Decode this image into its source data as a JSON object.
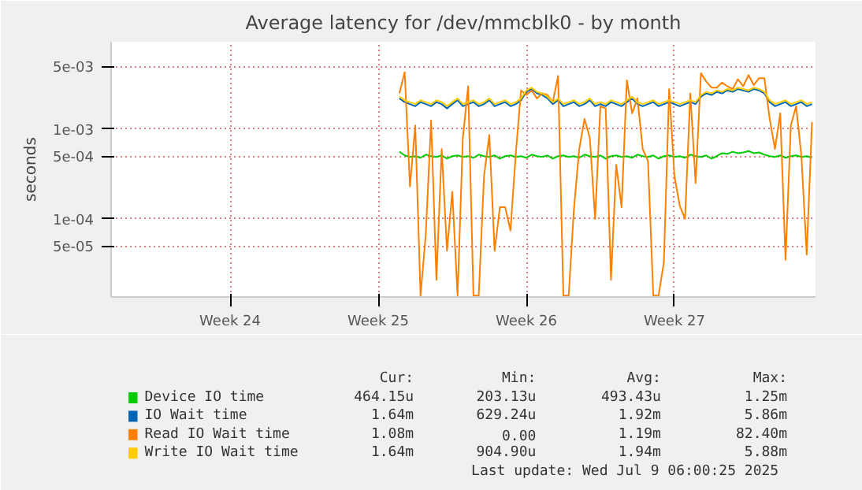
{
  "chart_data": {
    "type": "line",
    "title": "Average latency for /dev/mmcblk0 - by month",
    "ylabel": "seconds",
    "x": [
      "2025-06-19T12:00",
      "2025-06-19T18:00",
      "2025-06-20T00:00",
      "2025-06-20T06:00",
      "2025-06-20T12:00",
      "2025-06-20T18:00",
      "2025-06-21T00:00",
      "2025-06-21T06:00",
      "2025-06-21T12:00",
      "2025-06-21T18:00",
      "2025-06-22T00:00",
      "2025-06-22T06:00",
      "2025-06-22T12:00",
      "2025-06-22T18:00",
      "2025-06-23T00:00",
      "2025-06-23T06:00",
      "2025-06-23T12:00",
      "2025-06-23T18:00",
      "2025-06-24T00:00",
      "2025-06-24T06:00",
      "2025-06-24T12:00",
      "2025-06-24T18:00",
      "2025-06-25T00:00",
      "2025-06-25T06:00",
      "2025-06-25T12:00",
      "2025-06-25T18:00",
      "2025-06-26T00:00",
      "2025-06-26T06:00",
      "2025-06-26T12:00",
      "2025-06-26T18:00",
      "2025-06-27T00:00",
      "2025-06-27T06:00",
      "2025-06-27T12:00",
      "2025-06-27T18:00",
      "2025-06-28T00:00",
      "2025-06-28T06:00",
      "2025-06-28T12:00",
      "2025-06-28T18:00",
      "2025-06-29T00:00",
      "2025-06-29T06:00",
      "2025-06-29T12:00",
      "2025-06-29T18:00",
      "2025-06-30T00:00",
      "2025-06-30T06:00",
      "2025-06-30T12:00",
      "2025-06-30T18:00",
      "2025-07-01T00:00",
      "2025-07-01T06:00",
      "2025-07-01T12:00",
      "2025-07-01T18:00",
      "2025-07-02T00:00",
      "2025-07-02T06:00",
      "2025-07-02T12:00",
      "2025-07-02T18:00",
      "2025-07-03T00:00",
      "2025-07-03T06:00",
      "2025-07-03T12:00",
      "2025-07-03T18:00",
      "2025-07-04T00:00",
      "2025-07-04T06:00",
      "2025-07-04T12:00",
      "2025-07-04T18:00",
      "2025-07-05T00:00",
      "2025-07-05T06:00",
      "2025-07-05T12:00",
      "2025-07-05T18:00",
      "2025-07-06T00:00",
      "2025-07-06T06:00",
      "2025-07-06T12:00",
      "2025-07-06T18:00",
      "2025-07-07T00:00",
      "2025-07-07T06:00",
      "2025-07-07T12:00",
      "2025-07-07T18:00",
      "2025-07-08T00:00",
      "2025-07-08T06:00",
      "2025-07-08T12:00",
      "2025-07-08T18:00",
      "2025-07-09T00:00"
    ],
    "series": [
      {
        "name": "Device IO time",
        "color": "#00cc00",
        "values": [
          0.00056,
          0.00051,
          0.00049,
          0.0005,
          0.00048,
          0.00052,
          0.0005,
          0.00049,
          0.00051,
          0.00047,
          0.0005,
          0.00051,
          0.00049,
          0.0005,
          0.00048,
          0.00052,
          0.0005,
          0.00049,
          0.00051,
          0.00047,
          0.0005,
          0.00051,
          0.00049,
          0.0005,
          0.00048,
          0.00052,
          0.0005,
          0.00049,
          0.00051,
          0.00047,
          0.0005,
          0.00051,
          0.00049,
          0.0005,
          0.00048,
          0.00052,
          0.0005,
          0.00049,
          0.00051,
          0.00047,
          0.0005,
          0.00051,
          0.00049,
          0.0005,
          0.00048,
          0.00052,
          0.0005,
          0.00049,
          0.00051,
          0.00047,
          0.0005,
          0.00051,
          0.00049,
          0.0005,
          0.00048,
          0.00052,
          0.0005,
          0.00049,
          0.00051,
          0.00047,
          0.0005,
          0.00054,
          0.00053,
          0.00056,
          0.00054,
          0.00055,
          0.00057,
          0.00054,
          0.00055,
          0.00052,
          0.0005,
          0.00049,
          0.00051,
          0.00048,
          0.0005,
          0.00051,
          0.00049,
          0.0005,
          0.00048
        ]
      },
      {
        "name": "IO Wait time",
        "color": "#0066b3",
        "values": [
          0.0022,
          0.002,
          0.0019,
          0.0018,
          0.002,
          0.0019,
          0.0018,
          0.002,
          0.0019,
          0.0017,
          0.0019,
          0.0021,
          0.0018,
          0.0019,
          0.002,
          0.0018,
          0.0019,
          0.0021,
          0.0018,
          0.0019,
          0.002,
          0.0018,
          0.0019,
          0.0021,
          0.0026,
          0.0028,
          0.0025,
          0.0024,
          0.0022,
          0.0019,
          0.0021,
          0.0018,
          0.0019,
          0.002,
          0.0018,
          0.0019,
          0.0021,
          0.0018,
          0.0019,
          0.0018,
          0.002,
          0.0019,
          0.0018,
          0.002,
          0.0022,
          0.0019,
          0.0018,
          0.0019,
          0.002,
          0.0018,
          0.0019,
          0.002,
          0.0019,
          0.0018,
          0.0019,
          0.002,
          0.0019,
          0.0023,
          0.0025,
          0.0024,
          0.0026,
          0.0025,
          0.0027,
          0.0026,
          0.0028,
          0.0027,
          0.0026,
          0.0028,
          0.0027,
          0.0025,
          0.002,
          0.0018,
          0.0019,
          0.002,
          0.0018,
          0.0019,
          0.002,
          0.0018,
          0.0019
        ]
      },
      {
        "name": "Read IO Wait time",
        "color": "#ff8000",
        "values": [
          0.0025,
          0.0043,
          0.00023,
          0.0011,
          1.4e-05,
          6.9e-05,
          0.00125,
          2.1e-05,
          0.0006,
          4.4e-05,
          0.0002,
          1.4e-05,
          0.0008,
          0.003,
          1.4e-05,
          1.4e-05,
          0.0003,
          0.00086,
          4.4e-05,
          0.000135,
          0.000135,
          7.4e-05,
          0.00053,
          0.0027,
          0.0024,
          0.0027,
          0.0022,
          0.0025,
          0.0024,
          0.002,
          0.0039,
          1.4e-05,
          1.4e-05,
          0.00013,
          0.0006,
          0.0013,
          0.0008,
          0.0001,
          0.0018,
          0.0017,
          2.1e-05,
          0.0004,
          0.000135,
          0.0035,
          0.0015,
          0.0022,
          0.0006,
          0.00044,
          1.4e-05,
          1.4e-05,
          3.3e-05,
          0.0028,
          0.0003,
          0.00014,
          0.0001,
          0.0025,
          0.00025,
          0.0042,
          0.0034,
          0.0029,
          0.0029,
          0.0033,
          0.003,
          0.0028,
          0.0036,
          0.003,
          0.004,
          0.0031,
          0.0037,
          0.0037,
          0.0013,
          0.0006,
          0.0015,
          3.5e-05,
          0.0011,
          0.0018,
          0.0005,
          4e-05,
          0.0012
        ]
      },
      {
        "name": "Write IO Wait time",
        "color": "#ffcc00",
        "values": [
          0.0023,
          0.0021,
          0.002,
          0.0019,
          0.0021,
          0.002,
          0.0019,
          0.0021,
          0.002,
          0.0018,
          0.002,
          0.0022,
          0.0019,
          0.002,
          0.0021,
          0.0019,
          0.002,
          0.0022,
          0.0019,
          0.002,
          0.0021,
          0.0019,
          0.002,
          0.0022,
          0.0027,
          0.0029,
          0.0026,
          0.0025,
          0.0023,
          0.002,
          0.0022,
          0.0019,
          0.002,
          0.0021,
          0.0019,
          0.002,
          0.0022,
          0.0019,
          0.002,
          0.0019,
          0.0021,
          0.002,
          0.0019,
          0.0021,
          0.0023,
          0.002,
          0.0019,
          0.002,
          0.0021,
          0.0019,
          0.002,
          0.0021,
          0.002,
          0.0019,
          0.002,
          0.0021,
          0.002,
          0.0024,
          0.0026,
          0.0025,
          0.0027,
          0.0026,
          0.0028,
          0.0027,
          0.0029,
          0.0028,
          0.0027,
          0.0029,
          0.0028,
          0.0026,
          0.0021,
          0.0019,
          0.002,
          0.0021,
          0.0019,
          0.002,
          0.0021,
          0.0019,
          0.002
        ]
      }
    ],
    "xlim": [
      "2025-06-05T21:00",
      "2025-07-09T04:00"
    ],
    "xticks": [
      {
        "value": "2025-06-11T12:00",
        "label": "Week 24"
      },
      {
        "value": "2025-06-18T12:00",
        "label": "Week 25"
      },
      {
        "value": "2025-06-25T12:00",
        "label": "Week 26"
      },
      {
        "value": "2025-07-02T12:00",
        "label": "Week 27"
      }
    ],
    "ylim": [
      1.35e-05,
      0.0094
    ],
    "yticks": [
      {
        "value": 5e-05,
        "label": "5e-05"
      },
      {
        "value": 0.0001,
        "label": "1e-04"
      },
      {
        "value": 0.0005,
        "label": "5e-04"
      },
      {
        "value": 0.001,
        "label": "1e-03"
      },
      {
        "value": 0.005,
        "label": "5e-03"
      }
    ],
    "log": "y",
    "grid": true,
    "legend": "bottom",
    "marker": "none",
    "line_style": "solid",
    "annotations": [
      "Cur:",
      "Min:",
      "Avg:",
      "Max:",
      "464.15u",
      "203.13u",
      "493.43u",
      "1.25m",
      "1.64m",
      "629.24u",
      "1.92m",
      "5.86m",
      "1.08m",
      "0.00",
      "1.19m",
      "82.40m",
      "1.64m",
      "904.90u",
      "1.94m",
      "5.88m",
      "Last update: Wed Jul  9 06:00:25 2025"
    ]
  }
}
